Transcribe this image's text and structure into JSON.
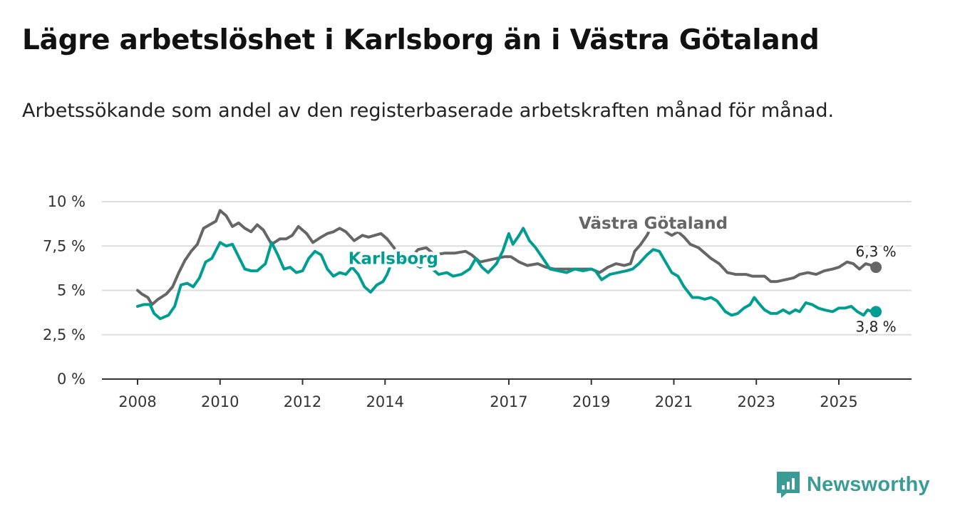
{
  "title": "Lägre arbetslöshet i Karlsborg än i Västra Götaland",
  "subtitle": "Arbetssökande som andel av den registerbaserade arbetskraften månad för månad.",
  "brand": {
    "name": "Newsworthy",
    "color": "#3a9c95"
  },
  "chart_data": {
    "type": "line",
    "ylim": [
      0,
      10
    ],
    "y_ticks": [
      0,
      2.5,
      5,
      7.5,
      10
    ],
    "y_tick_labels": [
      "0 %",
      "2,5 %",
      "5 %",
      "7,5 %",
      "10 %"
    ],
    "x_tick_years": [
      2008,
      2010,
      2012,
      2014,
      2017,
      2019,
      2021,
      2023,
      2025
    ],
    "x_range": [
      2007.1,
      2026.8
    ],
    "grid": true,
    "series": [
      {
        "name": "Västra Götaland",
        "color": "#666666",
        "label_at": 2020.5,
        "end_label": "6,3 %",
        "points": [
          [
            2008.0,
            5.0
          ],
          [
            2008.1,
            4.8
          ],
          [
            2008.25,
            4.6
          ],
          [
            2008.35,
            4.2
          ],
          [
            2008.5,
            4.5
          ],
          [
            2008.7,
            4.8
          ],
          [
            2008.85,
            5.2
          ],
          [
            2009.0,
            6.0
          ],
          [
            2009.15,
            6.7
          ],
          [
            2009.3,
            7.2
          ],
          [
            2009.45,
            7.6
          ],
          [
            2009.6,
            8.5
          ],
          [
            2009.75,
            8.7
          ],
          [
            2009.9,
            8.9
          ],
          [
            2010.0,
            9.5
          ],
          [
            2010.15,
            9.2
          ],
          [
            2010.3,
            8.6
          ],
          [
            2010.45,
            8.8
          ],
          [
            2010.6,
            8.5
          ],
          [
            2010.75,
            8.3
          ],
          [
            2010.9,
            8.7
          ],
          [
            2011.05,
            8.4
          ],
          [
            2011.25,
            7.6
          ],
          [
            2011.45,
            7.9
          ],
          [
            2011.6,
            7.9
          ],
          [
            2011.75,
            8.1
          ],
          [
            2011.9,
            8.6
          ],
          [
            2012.1,
            8.2
          ],
          [
            2012.25,
            7.7
          ],
          [
            2012.45,
            8.0
          ],
          [
            2012.6,
            8.2
          ],
          [
            2012.75,
            8.3
          ],
          [
            2012.9,
            8.5
          ],
          [
            2013.05,
            8.3
          ],
          [
            2013.25,
            7.8
          ],
          [
            2013.45,
            8.1
          ],
          [
            2013.6,
            8.0
          ],
          [
            2013.75,
            8.1
          ],
          [
            2013.9,
            8.2
          ],
          [
            2014.05,
            7.9
          ],
          [
            2014.25,
            7.3
          ],
          [
            2014.45,
            7.0
          ],
          [
            2014.6,
            6.8
          ],
          [
            2014.8,
            7.3
          ],
          [
            2015.0,
            7.4
          ],
          [
            2015.2,
            7.0
          ],
          [
            2015.45,
            7.1
          ],
          [
            2015.7,
            7.1
          ],
          [
            2015.95,
            7.2
          ],
          [
            2016.1,
            7.0
          ],
          [
            2016.3,
            6.6
          ],
          [
            2016.5,
            6.7
          ],
          [
            2016.7,
            6.8
          ],
          [
            2016.9,
            6.9
          ],
          [
            2017.05,
            6.9
          ],
          [
            2017.25,
            6.6
          ],
          [
            2017.45,
            6.4
          ],
          [
            2017.7,
            6.5
          ],
          [
            2017.9,
            6.3
          ],
          [
            2018.1,
            6.2
          ],
          [
            2018.4,
            6.2
          ],
          [
            2018.7,
            6.2
          ],
          [
            2019.0,
            6.2
          ],
          [
            2019.2,
            6.0
          ],
          [
            2019.4,
            6.3
          ],
          [
            2019.6,
            6.5
          ],
          [
            2019.8,
            6.4
          ],
          [
            2019.95,
            6.5
          ],
          [
            2020.05,
            7.2
          ],
          [
            2020.2,
            7.6
          ],
          [
            2020.35,
            8.1
          ],
          [
            2020.5,
            8.8
          ],
          [
            2020.65,
            8.6
          ],
          [
            2020.8,
            8.3
          ],
          [
            2020.95,
            8.1
          ],
          [
            2021.1,
            8.3
          ],
          [
            2021.25,
            8.0
          ],
          [
            2021.4,
            7.6
          ],
          [
            2021.6,
            7.4
          ],
          [
            2021.75,
            7.1
          ],
          [
            2021.9,
            6.8
          ],
          [
            2022.1,
            6.5
          ],
          [
            2022.3,
            6.0
          ],
          [
            2022.5,
            5.9
          ],
          [
            2022.75,
            5.9
          ],
          [
            2022.9,
            5.8
          ],
          [
            2023.05,
            5.8
          ],
          [
            2023.2,
            5.8
          ],
          [
            2023.35,
            5.5
          ],
          [
            2023.5,
            5.5
          ],
          [
            2023.7,
            5.6
          ],
          [
            2023.9,
            5.7
          ],
          [
            2024.05,
            5.9
          ],
          [
            2024.25,
            6.0
          ],
          [
            2024.45,
            5.9
          ],
          [
            2024.65,
            6.1
          ],
          [
            2024.85,
            6.2
          ],
          [
            2025.0,
            6.3
          ],
          [
            2025.2,
            6.6
          ],
          [
            2025.35,
            6.5
          ],
          [
            2025.5,
            6.2
          ],
          [
            2025.65,
            6.5
          ],
          [
            2025.8,
            6.4
          ],
          [
            2025.9,
            6.3
          ]
        ]
      },
      {
        "name": "Karlsborg",
        "color": "#009e90",
        "label_at": 2014.2,
        "end_label": "3,8 %",
        "points": [
          [
            2008.0,
            4.1
          ],
          [
            2008.15,
            4.2
          ],
          [
            2008.3,
            4.2
          ],
          [
            2008.4,
            3.7
          ],
          [
            2008.55,
            3.4
          ],
          [
            2008.75,
            3.6
          ],
          [
            2008.9,
            4.1
          ],
          [
            2009.05,
            5.3
          ],
          [
            2009.2,
            5.4
          ],
          [
            2009.35,
            5.2
          ],
          [
            2009.5,
            5.7
          ],
          [
            2009.65,
            6.6
          ],
          [
            2009.8,
            6.8
          ],
          [
            2010.0,
            7.7
          ],
          [
            2010.15,
            7.5
          ],
          [
            2010.3,
            7.6
          ],
          [
            2010.45,
            6.9
          ],
          [
            2010.6,
            6.2
          ],
          [
            2010.75,
            6.1
          ],
          [
            2010.9,
            6.1
          ],
          [
            2011.0,
            6.3
          ],
          [
            2011.1,
            6.5
          ],
          [
            2011.25,
            7.7
          ],
          [
            2011.4,
            7.0
          ],
          [
            2011.55,
            6.2
          ],
          [
            2011.7,
            6.3
          ],
          [
            2011.85,
            6.0
          ],
          [
            2012.0,
            6.1
          ],
          [
            2012.15,
            6.8
          ],
          [
            2012.3,
            7.2
          ],
          [
            2012.45,
            7.0
          ],
          [
            2012.6,
            6.2
          ],
          [
            2012.75,
            5.8
          ],
          [
            2012.9,
            6.0
          ],
          [
            2013.05,
            5.9
          ],
          [
            2013.2,
            6.3
          ],
          [
            2013.35,
            5.9
          ],
          [
            2013.5,
            5.2
          ],
          [
            2013.65,
            4.9
          ],
          [
            2013.8,
            5.3
          ],
          [
            2013.95,
            5.5
          ],
          [
            2014.05,
            5.9
          ],
          [
            2014.2,
            6.8
          ],
          [
            2014.35,
            6.7
          ],
          [
            2014.5,
            6.7
          ],
          [
            2014.7,
            6.5
          ],
          [
            2014.85,
            6.3
          ],
          [
            2015.0,
            6.5
          ],
          [
            2015.15,
            6.2
          ],
          [
            2015.3,
            5.9
          ],
          [
            2015.5,
            6.0
          ],
          [
            2015.65,
            5.8
          ],
          [
            2015.85,
            5.9
          ],
          [
            2016.05,
            6.2
          ],
          [
            2016.2,
            6.8
          ],
          [
            2016.35,
            6.3
          ],
          [
            2016.5,
            6.0
          ],
          [
            2016.7,
            6.5
          ],
          [
            2016.85,
            7.2
          ],
          [
            2017.0,
            8.2
          ],
          [
            2017.1,
            7.6
          ],
          [
            2017.25,
            8.1
          ],
          [
            2017.35,
            8.5
          ],
          [
            2017.5,
            7.8
          ],
          [
            2017.65,
            7.4
          ],
          [
            2017.8,
            6.9
          ],
          [
            2018.0,
            6.2
          ],
          [
            2018.2,
            6.1
          ],
          [
            2018.4,
            6.0
          ],
          [
            2018.6,
            6.2
          ],
          [
            2018.8,
            6.1
          ],
          [
            2019.0,
            6.2
          ],
          [
            2019.1,
            6.1
          ],
          [
            2019.25,
            5.6
          ],
          [
            2019.45,
            5.9
          ],
          [
            2019.65,
            6.0
          ],
          [
            2019.85,
            6.1
          ],
          [
            2020.0,
            6.2
          ],
          [
            2020.15,
            6.5
          ],
          [
            2020.35,
            7.0
          ],
          [
            2020.5,
            7.3
          ],
          [
            2020.65,
            7.2
          ],
          [
            2020.8,
            6.6
          ],
          [
            2020.95,
            6.0
          ],
          [
            2021.1,
            5.8
          ],
          [
            2021.25,
            5.2
          ],
          [
            2021.45,
            4.6
          ],
          [
            2021.6,
            4.6
          ],
          [
            2021.75,
            4.5
          ],
          [
            2021.9,
            4.6
          ],
          [
            2022.05,
            4.4
          ],
          [
            2022.25,
            3.8
          ],
          [
            2022.4,
            3.6
          ],
          [
            2022.55,
            3.7
          ],
          [
            2022.7,
            4.0
          ],
          [
            2022.85,
            4.2
          ],
          [
            2022.95,
            4.6
          ],
          [
            2023.05,
            4.3
          ],
          [
            2023.2,
            3.9
          ],
          [
            2023.35,
            3.7
          ],
          [
            2023.5,
            3.7
          ],
          [
            2023.65,
            3.9
          ],
          [
            2023.8,
            3.7
          ],
          [
            2023.95,
            3.9
          ],
          [
            2024.05,
            3.8
          ],
          [
            2024.2,
            4.3
          ],
          [
            2024.35,
            4.2
          ],
          [
            2024.5,
            4.0
          ],
          [
            2024.65,
            3.9
          ],
          [
            2024.85,
            3.8
          ],
          [
            2025.0,
            4.0
          ],
          [
            2025.15,
            4.0
          ],
          [
            2025.3,
            4.1
          ],
          [
            2025.45,
            3.8
          ],
          [
            2025.6,
            3.6
          ],
          [
            2025.7,
            3.9
          ],
          [
            2025.8,
            3.8
          ],
          [
            2025.9,
            3.8
          ]
        ]
      }
    ]
  }
}
